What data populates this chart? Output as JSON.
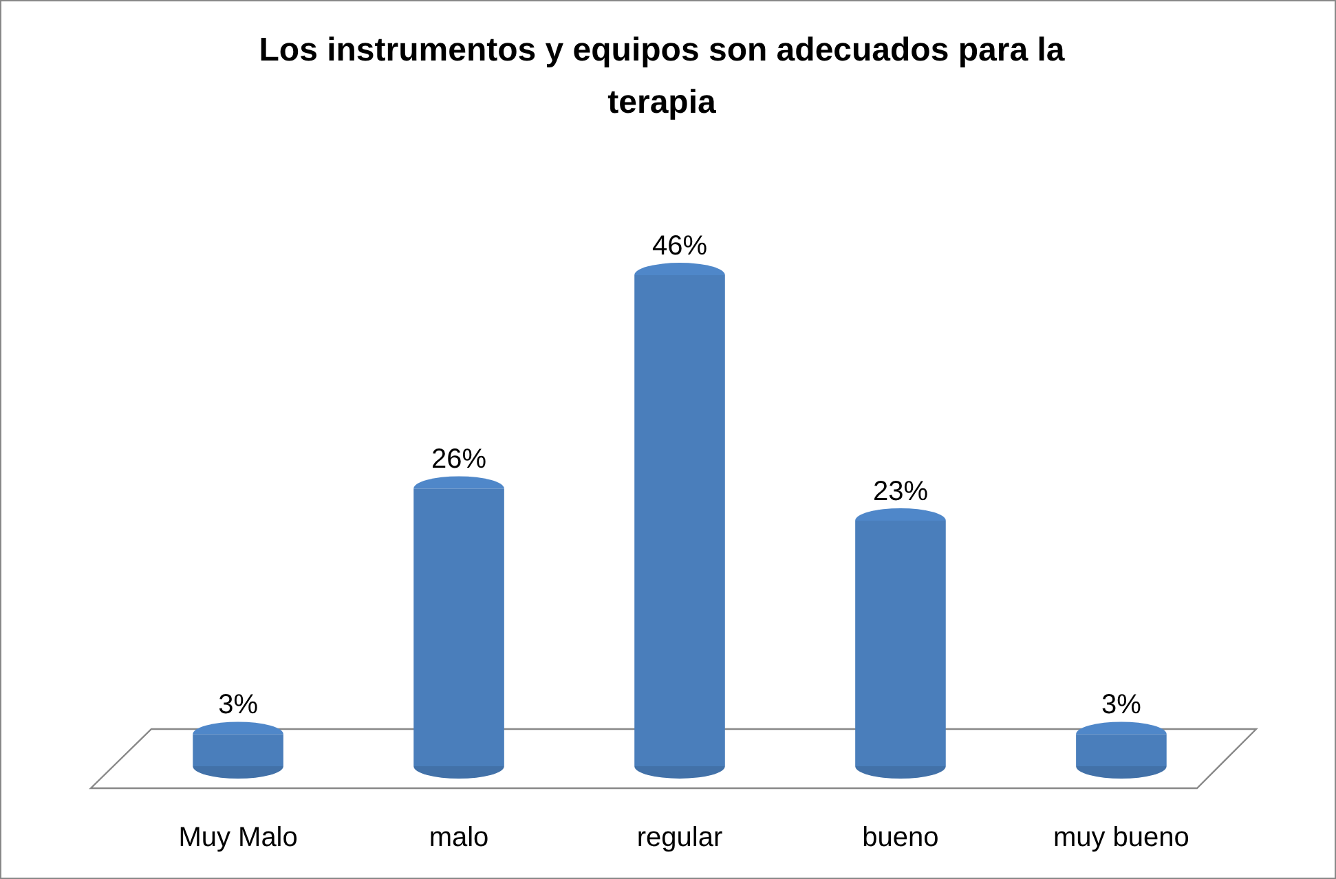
{
  "chart_data": {
    "type": "bar",
    "title": "Los instrumentos y equipos son adecuados para la terapia",
    "categories": [
      "Muy Malo",
      "malo",
      "regular",
      "bueno",
      "muy bueno"
    ],
    "values": [
      3,
      26,
      46,
      23,
      3
    ],
    "value_labels": [
      "3%",
      "26%",
      "46%",
      "23%",
      "3%"
    ],
    "color": "#4a7ebb"
  }
}
